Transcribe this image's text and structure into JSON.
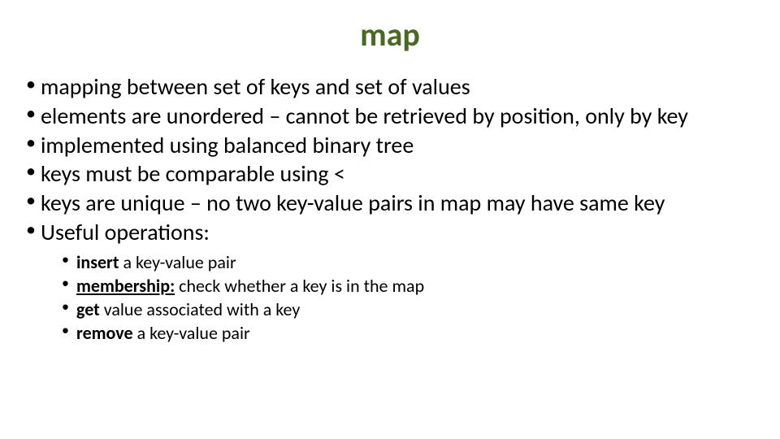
{
  "title": "map",
  "title_color": "#4a6a23",
  "title_fontsize": 40,
  "body_fontsize": 28,
  "sub_fontsize": 22,
  "background_color": "#ffffff",
  "text_color": "#000000",
  "bullets": [
    "mapping between set of keys and set of values",
    "elements are unordered – cannot be retrieved by position, only by key",
    "implemented using balanced binary tree",
    "keys must be comparable using <",
    "keys are unique – no two key-value pairs in map may have same key",
    "Useful operations:"
  ],
  "sub_bullets": [
    {
      "bold": "insert",
      "rest": " a key-value pair"
    },
    {
      "bold_underline": "membership:",
      "rest": " check whether a key is in the map"
    },
    {
      "bold": "get",
      "rest": " value associated with a key"
    },
    {
      "bold": "remove",
      "rest": " a key-value pair"
    }
  ]
}
